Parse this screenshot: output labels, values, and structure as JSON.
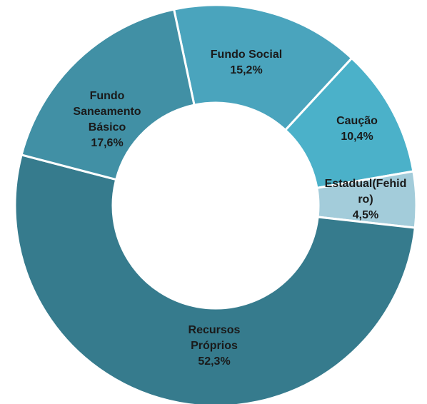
{
  "chart_data": {
    "type": "donut",
    "categories": [
      "Fundo Social",
      "Caução",
      "Estadual(Fehidro)",
      "Recursos Próprios",
      "Fundo Saneamento Básico"
    ],
    "values": [
      15.2,
      10.4,
      4.5,
      52.3,
      17.6
    ],
    "value_labels": [
      "15,2%",
      "10,4%",
      "4,5%",
      "52,3%",
      "17,6%"
    ],
    "colors": [
      "#4aa4bd",
      "#4bb1c9",
      "#a3ccda",
      "#367b8d",
      "#4190a5"
    ]
  }
}
